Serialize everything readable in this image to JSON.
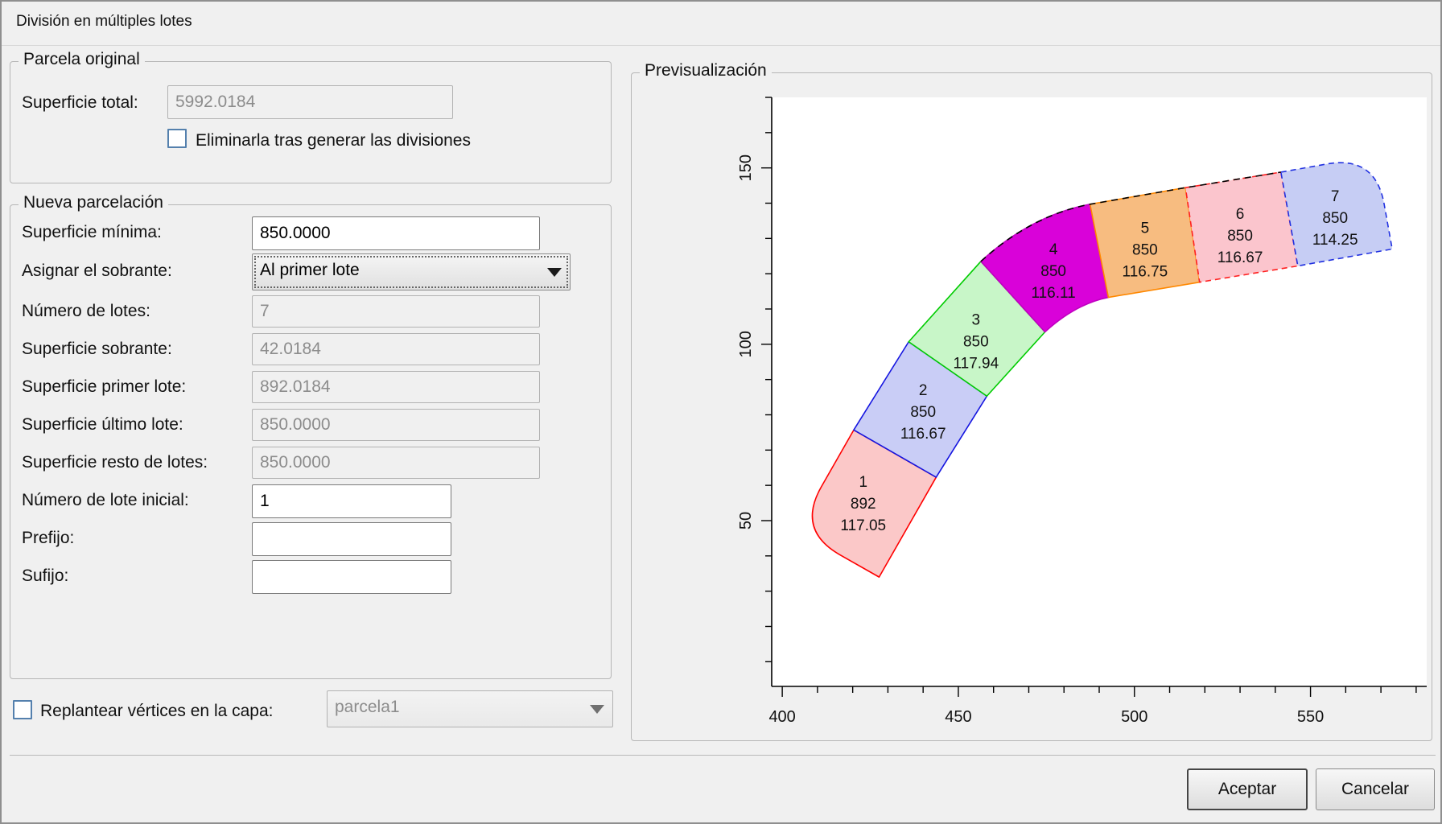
{
  "window": {
    "title": "División en múltiples lotes"
  },
  "parcela_original": {
    "legend": "Parcela original",
    "superficie_total_label": "Superficie total:",
    "superficie_total_value": "5992.0184",
    "eliminar_checkbox_label": "Eliminarla tras generar las divisiones",
    "eliminar_checked": false
  },
  "nueva_parcelacion": {
    "legend": "Nueva parcelación",
    "superficie_minima_label": "Superficie mínima:",
    "superficie_minima_value": "850.0000",
    "asignar_sobrante_label": "Asignar el sobrante:",
    "asignar_sobrante_value": "Al primer lote",
    "numero_lotes_label": "Número de lotes:",
    "numero_lotes_value": "7",
    "superficie_sobrante_label": "Superficie sobrante:",
    "superficie_sobrante_value": "42.0184",
    "superficie_primer_lote_label": "Superficie primer lote:",
    "superficie_primer_lote_value": "892.0184",
    "superficie_ultimo_lote_label": "Superficie último lote:",
    "superficie_ultimo_lote_value": "850.0000",
    "superficie_resto_lotes_label": "Superficie resto de lotes:",
    "superficie_resto_lotes_value": "850.0000",
    "numero_lote_inicial_label": "Número de lote inicial:",
    "numero_lote_inicial_value": "1",
    "prefijo_label": "Prefijo:",
    "prefijo_value": "",
    "sufijo_label": "Sufijo:",
    "sufijo_value": ""
  },
  "replantear": {
    "checkbox_label": "Replantear vértices en la capa:",
    "checked": false,
    "capa_value": "parcela1"
  },
  "preview": {
    "legend": "Previsualización"
  },
  "buttons": {
    "accept": "Aceptar",
    "cancel": "Cancelar"
  },
  "chart_data": {
    "type": "polygon-map",
    "title": "Previsualización",
    "x_ticks": [
      400,
      450,
      500,
      550
    ],
    "y_ticks": [
      50,
      100,
      150
    ],
    "minor_step": 10,
    "x_range": [
      397,
      583
    ],
    "y_range": [
      3,
      170
    ],
    "grid": false,
    "parcels": [
      {
        "id": "1",
        "area": "892",
        "length": "117.05",
        "fill": "#fbc8c8",
        "stroke": "#ff0000",
        "dash": false,
        "label_pos": [
          423,
          55
        ],
        "path": [
          [
            "M",
            420.3,
            75.7
          ],
          [
            "L",
            411.1,
            59.6
          ],
          [
            "Q",
            404.1,
            47.4,
            416.2,
            40.4
          ],
          [
            "L",
            427.5,
            34.0
          ],
          [
            "L",
            443.7,
            62.3
          ],
          [
            "Z"
          ]
        ]
      },
      {
        "id": "2",
        "area": "850",
        "length": "116.67",
        "fill": "#c9cdf6",
        "stroke": "#1515e0",
        "dash": false,
        "label_pos": [
          440,
          81
        ],
        "path": [
          [
            "M",
            420.3,
            75.7
          ],
          [
            "L",
            435.9,
            100.7
          ],
          [
            "L",
            458.1,
            85.3
          ],
          [
            "L",
            443.7,
            62.3
          ],
          [
            "Z"
          ]
        ]
      },
      {
        "id": "3",
        "area": "850",
        "length": "117.94",
        "fill": "#c8f6c8",
        "stroke": "#00cc00",
        "dash": false,
        "label_pos": [
          455,
          101
        ],
        "path": [
          [
            "M",
            435.9,
            100.7
          ],
          [
            "L",
            456.4,
            123.5
          ],
          [
            "L",
            474.6,
            103.5
          ],
          [
            "L",
            458.1,
            85.3
          ],
          [
            "Z"
          ]
        ]
      },
      {
        "id": "4",
        "area": "850",
        "length": "116.11",
        "fill": "#d902d9",
        "stroke": "#c000c0",
        "dash": false,
        "label_pos": [
          477,
          121
        ],
        "path": [
          [
            "M",
            456.4,
            123.5
          ],
          [
            "Q",
            470.6,
            136.5,
            487.4,
            139.7
          ],
          [
            "L",
            492.6,
            113.3
          ],
          [
            "Q",
            483.4,
            111.5,
            474.6,
            103.5
          ],
          [
            "Z"
          ]
        ]
      },
      {
        "id": "5",
        "area": "850",
        "length": "116.75",
        "fill": "#f7bc80",
        "stroke": "#ff8800",
        "dash": false,
        "label_pos": [
          503,
          127
        ],
        "path": [
          [
            "M",
            487.4,
            139.7
          ],
          [
            "L",
            514.5,
            144.4
          ],
          [
            "L",
            518.5,
            117.6
          ],
          [
            "L",
            492.6,
            113.3
          ],
          [
            "Z"
          ]
        ]
      },
      {
        "id": "6",
        "area": "850",
        "length": "116.67",
        "fill": "#fbc5cd",
        "stroke": "#ff2020",
        "dash": true,
        "label_pos": [
          530,
          131
        ],
        "path": [
          [
            "M",
            514.5,
            144.4
          ],
          [
            "L",
            541.6,
            148.8
          ],
          [
            "L",
            546.4,
            122.2
          ],
          [
            "L",
            518.5,
            117.6
          ],
          [
            "Z"
          ]
        ]
      },
      {
        "id": "7",
        "area": "850",
        "length": "114.25",
        "fill": "#c6cdf4",
        "stroke": "#2030e0",
        "dash": true,
        "label_pos": [
          557,
          136
        ],
        "path": [
          [
            "M",
            541.6,
            148.8
          ],
          [
            "L",
            554.6,
            151.1
          ],
          [
            "Q",
            568.4,
            153.6,
            570.9,
            139.8
          ],
          [
            "L",
            573.2,
            127.0
          ],
          [
            "L",
            546.4,
            122.2
          ],
          [
            "Z"
          ]
        ]
      }
    ],
    "boundary_dashed": [
      [
        "M",
        456.4,
        123.5
      ],
      [
        "Q",
        470.6,
        136.5,
        487.4,
        139.7
      ],
      [
        "L",
        514.5,
        144.4
      ],
      [
        "L",
        541.6,
        148.8
      ]
    ]
  }
}
